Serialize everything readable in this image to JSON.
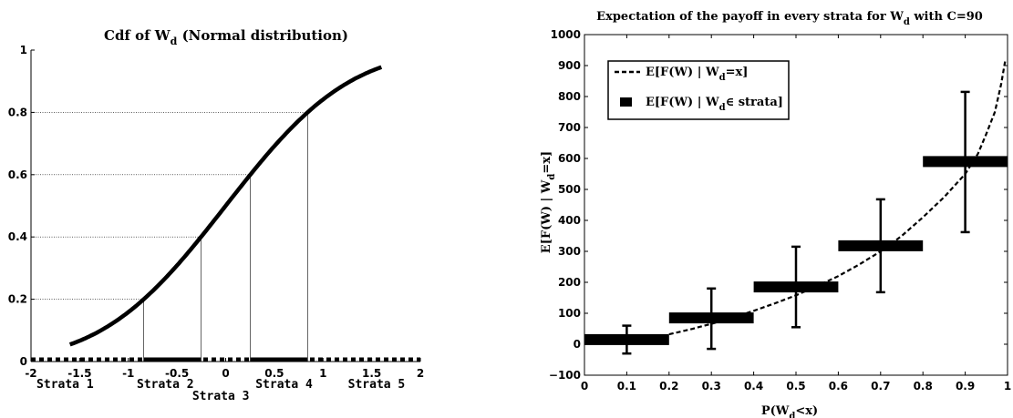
{
  "chart_data": [
    {
      "type": "line",
      "title": "Cdf of W",
      "title_sub": "d",
      "title_suffix": " (Normal distribution)",
      "xlim": [
        -2,
        2
      ],
      "ylim": [
        0,
        1
      ],
      "xticks": [
        "-2",
        "-1.5",
        "-1",
        "-0.5",
        "0",
        "0.5",
        "1",
        "1.5",
        "2"
      ],
      "yticks": [
        "0",
        "0.2",
        "0.4",
        "0.6",
        "0.8",
        "1"
      ],
      "xtick_values": [
        -2,
        -1.5,
        -1,
        -0.5,
        0,
        0.5,
        1,
        1.5,
        2
      ],
      "ytick_values": [
        0,
        0.2,
        0.4,
        0.6,
        0.8,
        1
      ],
      "curve_range": [
        -1.6,
        1.6
      ],
      "strata_boundaries": [
        {
          "x": -0.8416,
          "y": 0.2
        },
        {
          "x": -0.2533,
          "y": 0.4
        },
        {
          "x": 0.2533,
          "y": 0.6
        },
        {
          "x": 0.8416,
          "y": 0.8
        }
      ],
      "strata_labels": [
        "Strata 1",
        "Strata 2",
        "Strata 3",
        "Strata 4",
        "Strata 5"
      ],
      "strata_label_x": [
        -1.65,
        -0.62,
        -0.05,
        0.6,
        1.55
      ],
      "strata_label_row": [
        0,
        0,
        1,
        0,
        0
      ],
      "grid": false
    },
    {
      "type": "line",
      "title": "Expectation of the payoff in every strata for W",
      "title_sub": "d",
      "title_suffix": " with C=90",
      "xlabel": "P(W",
      "xlabel_sub": "d",
      "xlabel_suffix": "<x)",
      "ylabel": "E[F(W) | W",
      "ylabel_sub": "d",
      "ylabel_suffix": "=x]",
      "xlim": [
        0,
        1
      ],
      "ylim": [
        -100,
        1000
      ],
      "xticks": [
        "0",
        "0.1",
        "0.2",
        "0.3",
        "0.4",
        "0.5",
        "0.6",
        "0.7",
        "0.8",
        "0.9",
        "1"
      ],
      "yticks": [
        "−100",
        "0",
        "100",
        "200",
        "300",
        "400",
        "500",
        "600",
        "700",
        "800",
        "900",
        "1000"
      ],
      "xtick_values": [
        0,
        0.1,
        0.2,
        0.3,
        0.4,
        0.5,
        0.6,
        0.7,
        0.8,
        0.9,
        1
      ],
      "ytick_values": [
        -100,
        0,
        100,
        200,
        300,
        400,
        500,
        600,
        700,
        800,
        900,
        1000
      ],
      "legend_position": "top-left",
      "series": [
        {
          "name": "E[F(W) | W",
          "name_sub": "d",
          "name_suffix": "=x]",
          "style": "dashed",
          "x": [
            0.2,
            0.25,
            0.3,
            0.35,
            0.4,
            0.45,
            0.5,
            0.55,
            0.6,
            0.65,
            0.7,
            0.75,
            0.8,
            0.85,
            0.9,
            0.93,
            0.95,
            0.97,
            0.985,
            0.995
          ],
          "y": [
            32,
            48,
            66,
            86,
            108,
            132,
            158,
            188,
            220,
            258,
            300,
            350,
            410,
            475,
            550,
            615,
            680,
            750,
            840,
            920
          ]
        },
        {
          "name": "E[F(W) | W",
          "name_sub": "d",
          "name_suffix": "∈ strata]",
          "style": "strata-bars",
          "strata": [
            {
              "x0": 0,
              "x1": 0.2,
              "center": 0.1,
              "mean": 15,
              "low": -30,
              "high": 60
            },
            {
              "x0": 0.2,
              "x1": 0.4,
              "center": 0.3,
              "mean": 85,
              "low": -15,
              "high": 180
            },
            {
              "x0": 0.4,
              "x1": 0.6,
              "center": 0.5,
              "mean": 185,
              "low": 55,
              "high": 315
            },
            {
              "x0": 0.6,
              "x1": 0.8,
              "center": 0.7,
              "mean": 318,
              "low": 168,
              "high": 468
            },
            {
              "x0": 0.8,
              "x1": 1.0,
              "center": 0.9,
              "mean": 590,
              "low": 362,
              "high": 815
            }
          ]
        }
      ],
      "grid": false
    }
  ]
}
